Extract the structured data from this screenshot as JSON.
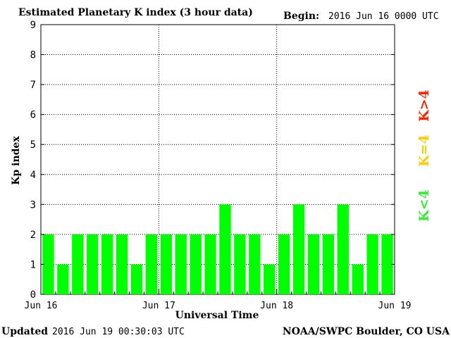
{
  "header": {
    "title": "Estimated Planetary K index (3 hour data)",
    "begin_label": "Begin:",
    "begin_value": "2016 Jun 16 0000 UTC"
  },
  "footer": {
    "updated_label": "Updated",
    "updated_value": "2016 Jun 19 00:30:03 UTC",
    "credit": "NOAA/SWPC Boulder, CO USA"
  },
  "legend": {
    "items": [
      {
        "label": "K<4",
        "color": "#33ee33"
      },
      {
        "label": "K=4",
        "color": "#ffcc00"
      },
      {
        "label": "K>4",
        "color": "#ff2200"
      }
    ]
  },
  "chart_data": {
    "type": "bar",
    "title": "Estimated Planetary K index (3 hour data)",
    "xlabel": "Universal Time",
    "ylabel": "Kp index",
    "ylim": [
      0,
      9
    ],
    "yticks": [
      0,
      1,
      2,
      3,
      4,
      5,
      6,
      7,
      8,
      9
    ],
    "xtick_labels": [
      "Jun 16",
      "Jun 17",
      "Jun 18",
      "Jun 19"
    ],
    "grid": true,
    "bar_color": "#00ff00",
    "values": [
      2,
      1,
      2,
      2,
      2,
      2,
      1,
      2,
      2,
      2,
      2,
      2,
      3,
      2,
      2,
      1,
      2,
      3,
      2,
      2,
      3,
      1,
      2,
      2
    ]
  }
}
